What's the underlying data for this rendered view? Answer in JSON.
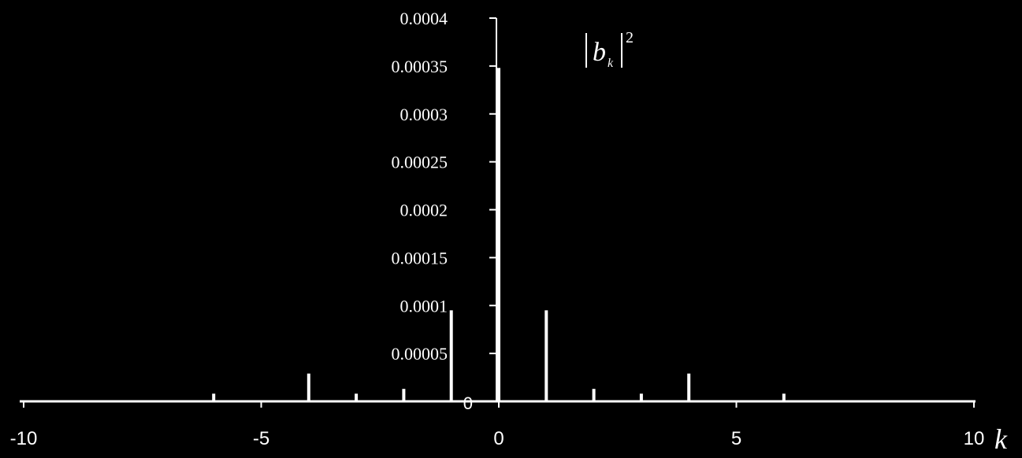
{
  "chart_data": {
    "type": "bar",
    "xlabel": "k",
    "ylabel": {
      "base": "b",
      "subscript": "k",
      "superscript": "2"
    },
    "xlim": [
      -10,
      10
    ],
    "ylim": [
      0,
      0.0004
    ],
    "x_ticks": [
      {
        "value": -10,
        "label": "-10"
      },
      {
        "value": -5,
        "label": "-5"
      },
      {
        "value": 0,
        "label": "0"
      },
      {
        "value": 5,
        "label": "5"
      },
      {
        "value": 10,
        "label": "10"
      }
    ],
    "y_ticks": [
      {
        "value": 0,
        "label": "0"
      },
      {
        "value": 5e-05,
        "label": "0.00005"
      },
      {
        "value": 0.0001,
        "label": "0.0001"
      },
      {
        "value": 0.00015,
        "label": "0.00015"
      },
      {
        "value": 0.0002,
        "label": "0.0002"
      },
      {
        "value": 0.00025,
        "label": "0.00025"
      },
      {
        "value": 0.0003,
        "label": "0.0003"
      },
      {
        "value": 0.00035,
        "label": "0.00035"
      },
      {
        "value": 0.0004,
        "label": "0.0004"
      }
    ],
    "x": [
      -6,
      -4,
      -3,
      -2,
      -1,
      0,
      1,
      2,
      3,
      4,
      6
    ],
    "values": [
      8e-06,
      2.9e-05,
      8e-06,
      1.3e-05,
      9.5e-05,
      0.000348,
      9.5e-05,
      1.3e-05,
      8e-06,
      2.9e-05,
      8e-06
    ],
    "grid": false,
    "colors": {
      "background": "#000000",
      "foreground": "#ffffff"
    }
  }
}
